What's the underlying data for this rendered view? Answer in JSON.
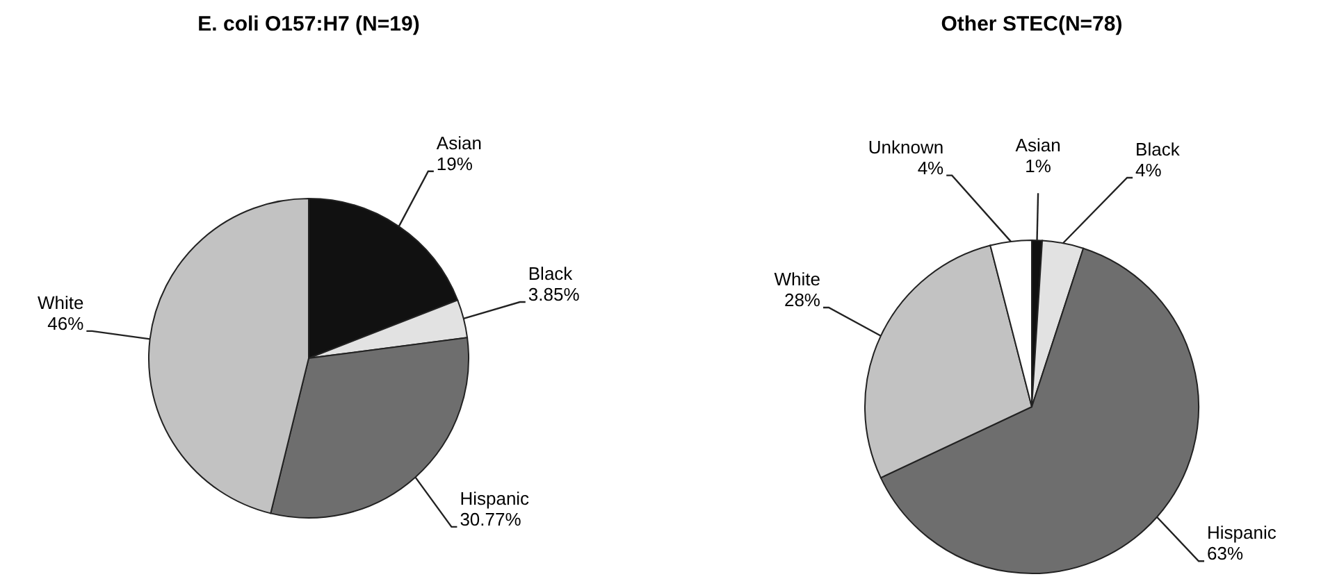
{
  "chart_data": [
    {
      "type": "pie",
      "title": "E. coli O157:H7 (N=19)",
      "categories": [
        "Asian",
        "Black",
        "Hispanic",
        "White"
      ],
      "values": [
        19,
        3.85,
        30.77,
        46
      ],
      "value_labels": [
        "19%",
        "3.85%",
        "30.77%",
        "46%"
      ],
      "colors": [
        "#111111",
        "#e2e2e2",
        "#6e6e6e",
        "#c2c2c2"
      ]
    },
    {
      "type": "pie",
      "title": "Other STEC(N=78)",
      "categories": [
        "Asian",
        "Black",
        "Hispanic",
        "White",
        "Unknown"
      ],
      "values": [
        1,
        4,
        63,
        28,
        4
      ],
      "value_labels": [
        "1%",
        "4%",
        "63%",
        "28%",
        "4%"
      ],
      "colors": [
        "#111111",
        "#e2e2e2",
        "#6e6e6e",
        "#c2c2c2",
        "#ffffff"
      ]
    }
  ]
}
